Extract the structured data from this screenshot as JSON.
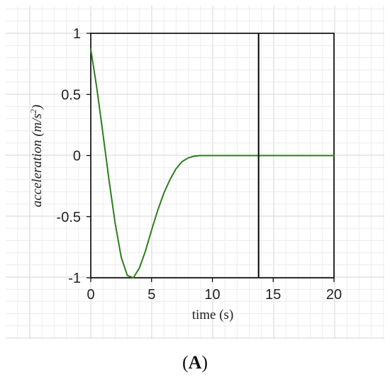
{
  "chart_data": {
    "type": "line",
    "xlabel": "time (s)",
    "ylabel": {
      "base": "acceleration (m/s",
      "superscript": "2",
      "close": ")"
    },
    "xlim": [
      0,
      20
    ],
    "ylim": [
      -1,
      1
    ],
    "x_ticks": [
      {
        "value": 0,
        "label": "0"
      },
      {
        "value": 5,
        "label": "5"
      },
      {
        "value": 10,
        "label": "10"
      },
      {
        "value": 15,
        "label": "15"
      },
      {
        "value": 20,
        "label": "20"
      }
    ],
    "y_ticks": [
      {
        "value": 1,
        "label": "1"
      },
      {
        "value": 0.5,
        "label": "0.5"
      },
      {
        "value": 0,
        "label": "0"
      },
      {
        "value": -0.5,
        "label": "-0.5"
      },
      {
        "value": -1,
        "label": "-1"
      }
    ],
    "vertical_line_x": 13.8,
    "grid": true,
    "series": [
      {
        "color": "#2e7d1f",
        "x": [
          0,
          0.5,
          1,
          1.5,
          2,
          2.5,
          3,
          3.5,
          4,
          4.5,
          5,
          5.5,
          6,
          6.5,
          7,
          7.5,
          8,
          8.5,
          9,
          9.5,
          10,
          11,
          12,
          13,
          14,
          15,
          16,
          17,
          18,
          19,
          20
        ],
        "y": [
          0.87,
          0.55,
          0.18,
          -0.2,
          -0.55,
          -0.83,
          -0.98,
          -1.0,
          -0.92,
          -0.78,
          -0.61,
          -0.45,
          -0.31,
          -0.2,
          -0.11,
          -0.05,
          -0.02,
          -0.005,
          0,
          0,
          0,
          0,
          0,
          0,
          0,
          0,
          0,
          0,
          0,
          0,
          0
        ]
      }
    ]
  },
  "panel_label": {
    "open": "(",
    "letter": "A",
    "close": ")"
  },
  "colors": {
    "grid_minor": "#ececec",
    "grid_major": "#d6d6d6",
    "axes": "#000000",
    "background": "#ffffff"
  }
}
